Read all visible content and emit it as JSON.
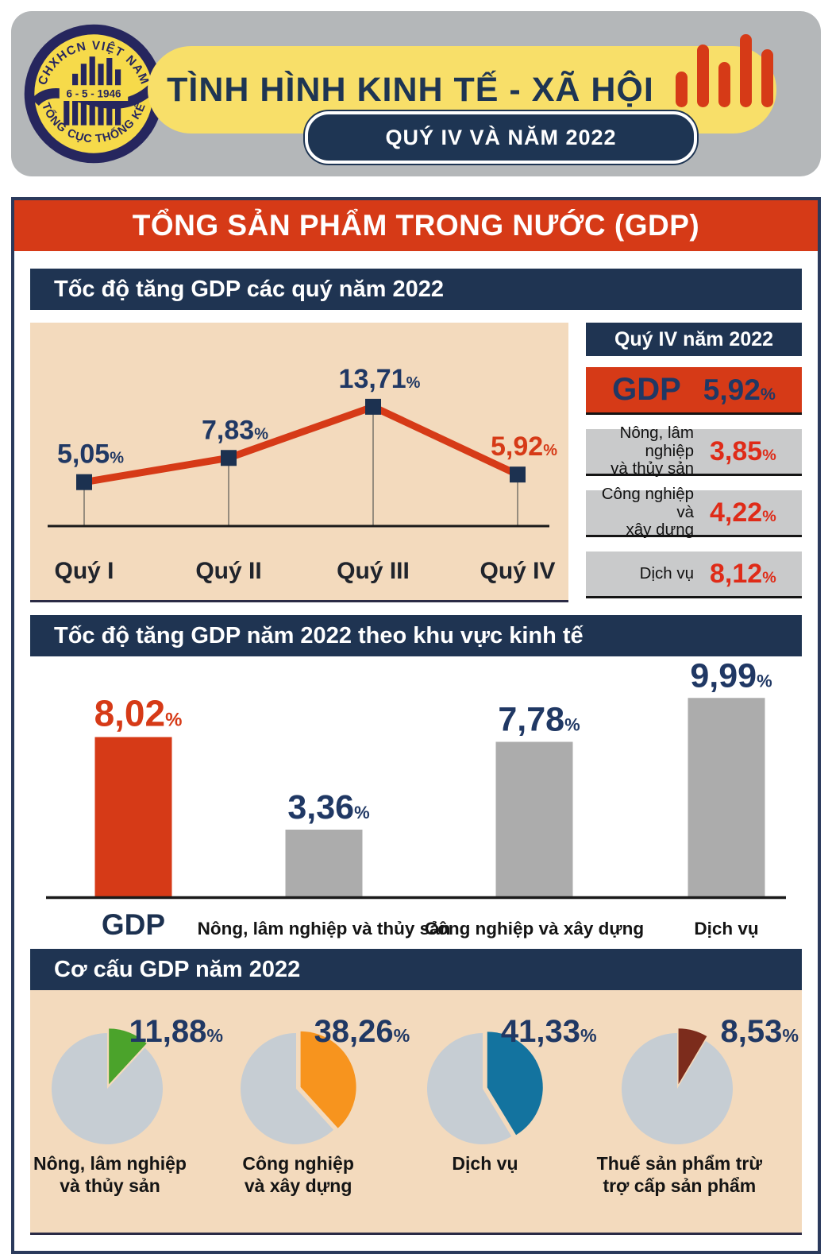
{
  "header": {
    "logo": {
      "arc_top": "CHXHCN VIỆT NAM",
      "date": "6 - 5 - 1946",
      "arc_bottom": "TỔNG CỤC THỐNG KÊ"
    },
    "title": "TÌNH HÌNH KINH TẾ - XÃ HỘI",
    "badge": "QUÝ IV VÀ NĂM 2022",
    "bars_icon": "bar-chart-icon"
  },
  "main_banner": "TỔNG SẢN PHẨM TRONG NƯỚC (GDP)",
  "quarter_panel": {
    "title": "Quý IV năm 2022",
    "unit": "%",
    "rows": [
      {
        "label_lines": [
          "GDP"
        ],
        "value": "5,92",
        "style": "gdp"
      },
      {
        "label_lines": [
          "Nông, lâm nghiệp",
          "và thủy sản"
        ],
        "value": "3,85",
        "style": "sector"
      },
      {
        "label_lines": [
          "Công nghiệp và",
          "xây dựng"
        ],
        "value": "4,22",
        "style": "sector"
      },
      {
        "label_lines": [
          "Dịch vụ"
        ],
        "value": "8,12",
        "style": "sector"
      }
    ]
  },
  "chart_data": [
    {
      "type": "line",
      "title": "Tốc độ tăng GDP các quý năm 2022",
      "categories": [
        "Quý I",
        "Quý II",
        "Quý III",
        "Quý IV"
      ],
      "values": [
        5.05,
        7.83,
        13.71,
        5.92
      ],
      "value_labels": [
        "5,05",
        "7,83",
        "13,71",
        "5,92"
      ],
      "unit": "%",
      "ylim": [
        0,
        16
      ],
      "grid": false,
      "line_color": "#d63a17",
      "marker_color": "#1c3150",
      "value_label_colors": [
        "#203864",
        "#203864",
        "#203864",
        "#d63a17"
      ],
      "background": "#f3dabd"
    },
    {
      "type": "bar",
      "title": "Tốc độ tăng GDP năm 2022 theo khu vực kinh tế",
      "categories": [
        "GDP",
        "Nông, lâm nghiệp và thủy sản",
        "Công nghiệp và xây dựng",
        "Dịch vụ"
      ],
      "values": [
        8.02,
        3.36,
        7.78,
        9.99
      ],
      "value_labels": [
        "8,02",
        "3,36",
        "7,78",
        "9,99"
      ],
      "unit": "%",
      "ylim": [
        0,
        11
      ],
      "grid": false,
      "bar_colors": [
        "#d63a17",
        "#acacac",
        "#acacac",
        "#acacac"
      ],
      "value_label_colors": [
        "#d63a17",
        "#203864",
        "#203864",
        "#203864"
      ],
      "background": "#ffffff"
    },
    {
      "type": "pie",
      "title": "Cơ cấu GDP năm 2022",
      "unit": "%",
      "remainder_color": "#c6cdd3",
      "background": "#f3dabd",
      "slices": [
        {
          "label_lines": [
            "Nông, lâm nghiệp",
            "và thủy sản"
          ],
          "value": 11.88,
          "value_label": "11,88",
          "color": "#4ba32b"
        },
        {
          "label_lines": [
            "Công nghiệp",
            "và xây dựng"
          ],
          "value": 38.26,
          "value_label": "38,26",
          "color": "#f7941e"
        },
        {
          "label_lines": [
            "Dịch vụ"
          ],
          "value": 41.33,
          "value_label": "41,33",
          "color": "#13739f"
        },
        {
          "label_lines": [
            "Thuế sản phẩm trừ",
            "trợ cấp sản phẩm"
          ],
          "value": 8.53,
          "value_label": "8,53",
          "color": "#7c2c1c"
        }
      ]
    }
  ],
  "colors": {
    "accent_red": "#d63a17",
    "value_red": "#df2b18",
    "banner_navy": "#1f3452",
    "value_navy": "#203864",
    "box_border_navy": "#2b3a5c",
    "beige": "#f3dabd",
    "gray_box": "#c9cacb",
    "bar_gray": "#acacac",
    "pie_gray": "#c6cdd3",
    "header_gray": "#b4b7b9",
    "banner_yellow": "#f8df69",
    "logo_navy": "#26265e",
    "logo_yellow": "#f6da4a"
  }
}
